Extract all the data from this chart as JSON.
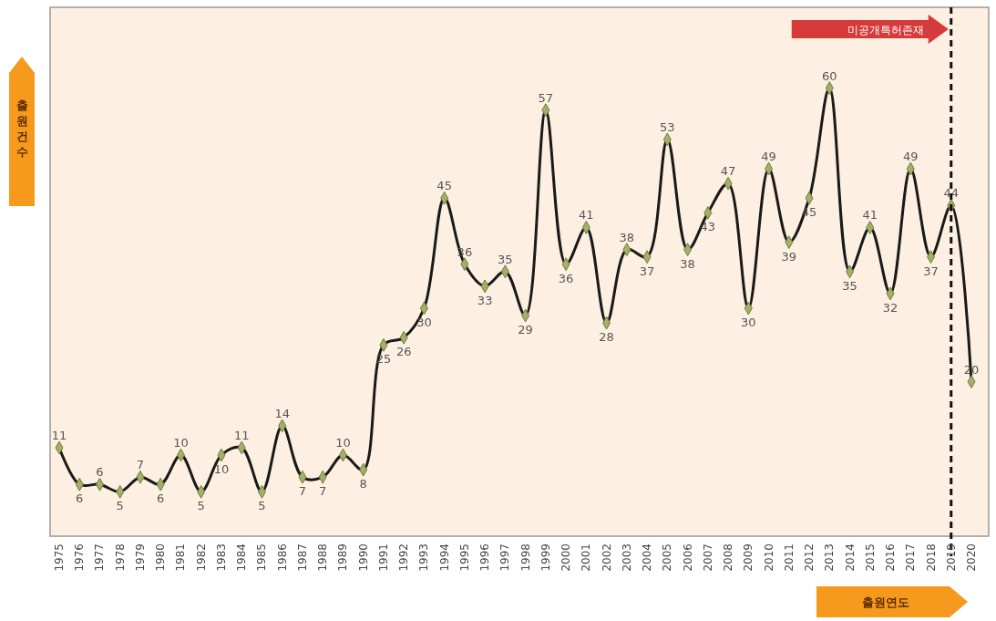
{
  "chart_data": {
    "type": "line",
    "xlabel": "출원연도",
    "ylabel": "출원건수",
    "categories": [
      "1975",
      "1976",
      "1977",
      "1978",
      "1979",
      "1980",
      "1981",
      "1982",
      "1983",
      "1984",
      "1985",
      "1986",
      "1987",
      "1988",
      "1989",
      "1990",
      "1991",
      "1992",
      "1993",
      "1994",
      "1995",
      "1996",
      "1997",
      "1998",
      "1999",
      "2000",
      "2001",
      "2002",
      "2003",
      "2004",
      "2005",
      "2006",
      "2007",
      "2008",
      "2009",
      "2010",
      "2011",
      "2012",
      "2013",
      "2014",
      "2015",
      "2016",
      "2017",
      "2018",
      "2019",
      "2020"
    ],
    "series": [
      {
        "color": "#1a1a1a",
        "values": [
          11,
          6,
          6,
          5,
          7,
          6,
          10,
          5,
          10,
          11,
          5,
          14,
          7,
          7,
          10,
          8,
          25,
          26,
          30,
          45,
          36,
          33,
          35,
          29,
          57,
          36,
          41,
          28,
          38,
          37,
          53,
          38,
          43,
          47,
          30,
          49,
          39,
          45,
          60,
          35,
          41,
          32,
          49,
          37,
          44,
          20
        ]
      }
    ],
    "data_labels": true,
    "marker": "diamond",
    "line_style": "solid",
    "ref_lines": [
      {
        "axis": "x",
        "value": "2019",
        "label": "미공개특허존재",
        "color": "#111111",
        "line_style": "dashed"
      }
    ]
  }
}
